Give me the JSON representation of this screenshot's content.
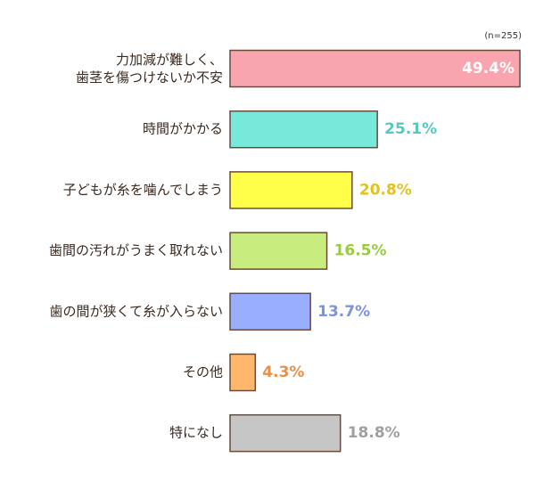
{
  "chart_data": {
    "type": "bar",
    "orientation": "horizontal",
    "note": "(n=255)",
    "categories": [
      "力加減が難しく、\n歯茎を傷つけないか不安",
      "時間がかかる",
      "子どもが糸を噛んでしまう",
      "歯間の汚れがうまく取れない",
      "歯の間が狭くて糸が入らない",
      "その他",
      "特になし"
    ],
    "values": [
      49.4,
      25.1,
      20.8,
      16.5,
      13.7,
      4.3,
      18.8
    ],
    "value_labels": [
      "49.4%",
      "25.1%",
      "20.8%",
      "16.5%",
      "13.7%",
      "4.3%",
      "18.8%"
    ],
    "colors": [
      "#f8a5b0",
      "#78e8da",
      "#ffff4a",
      "#c8ec7e",
      "#9aaeff",
      "#ffb76c",
      "#c6c6c6"
    ],
    "label_colors": [
      "#ffffff",
      "#55c9c0",
      "#e2c21e",
      "#98cc40",
      "#7b93e2",
      "#e8904a",
      "#a0a0a0"
    ],
    "border_color": "#6b4a3a"
  }
}
